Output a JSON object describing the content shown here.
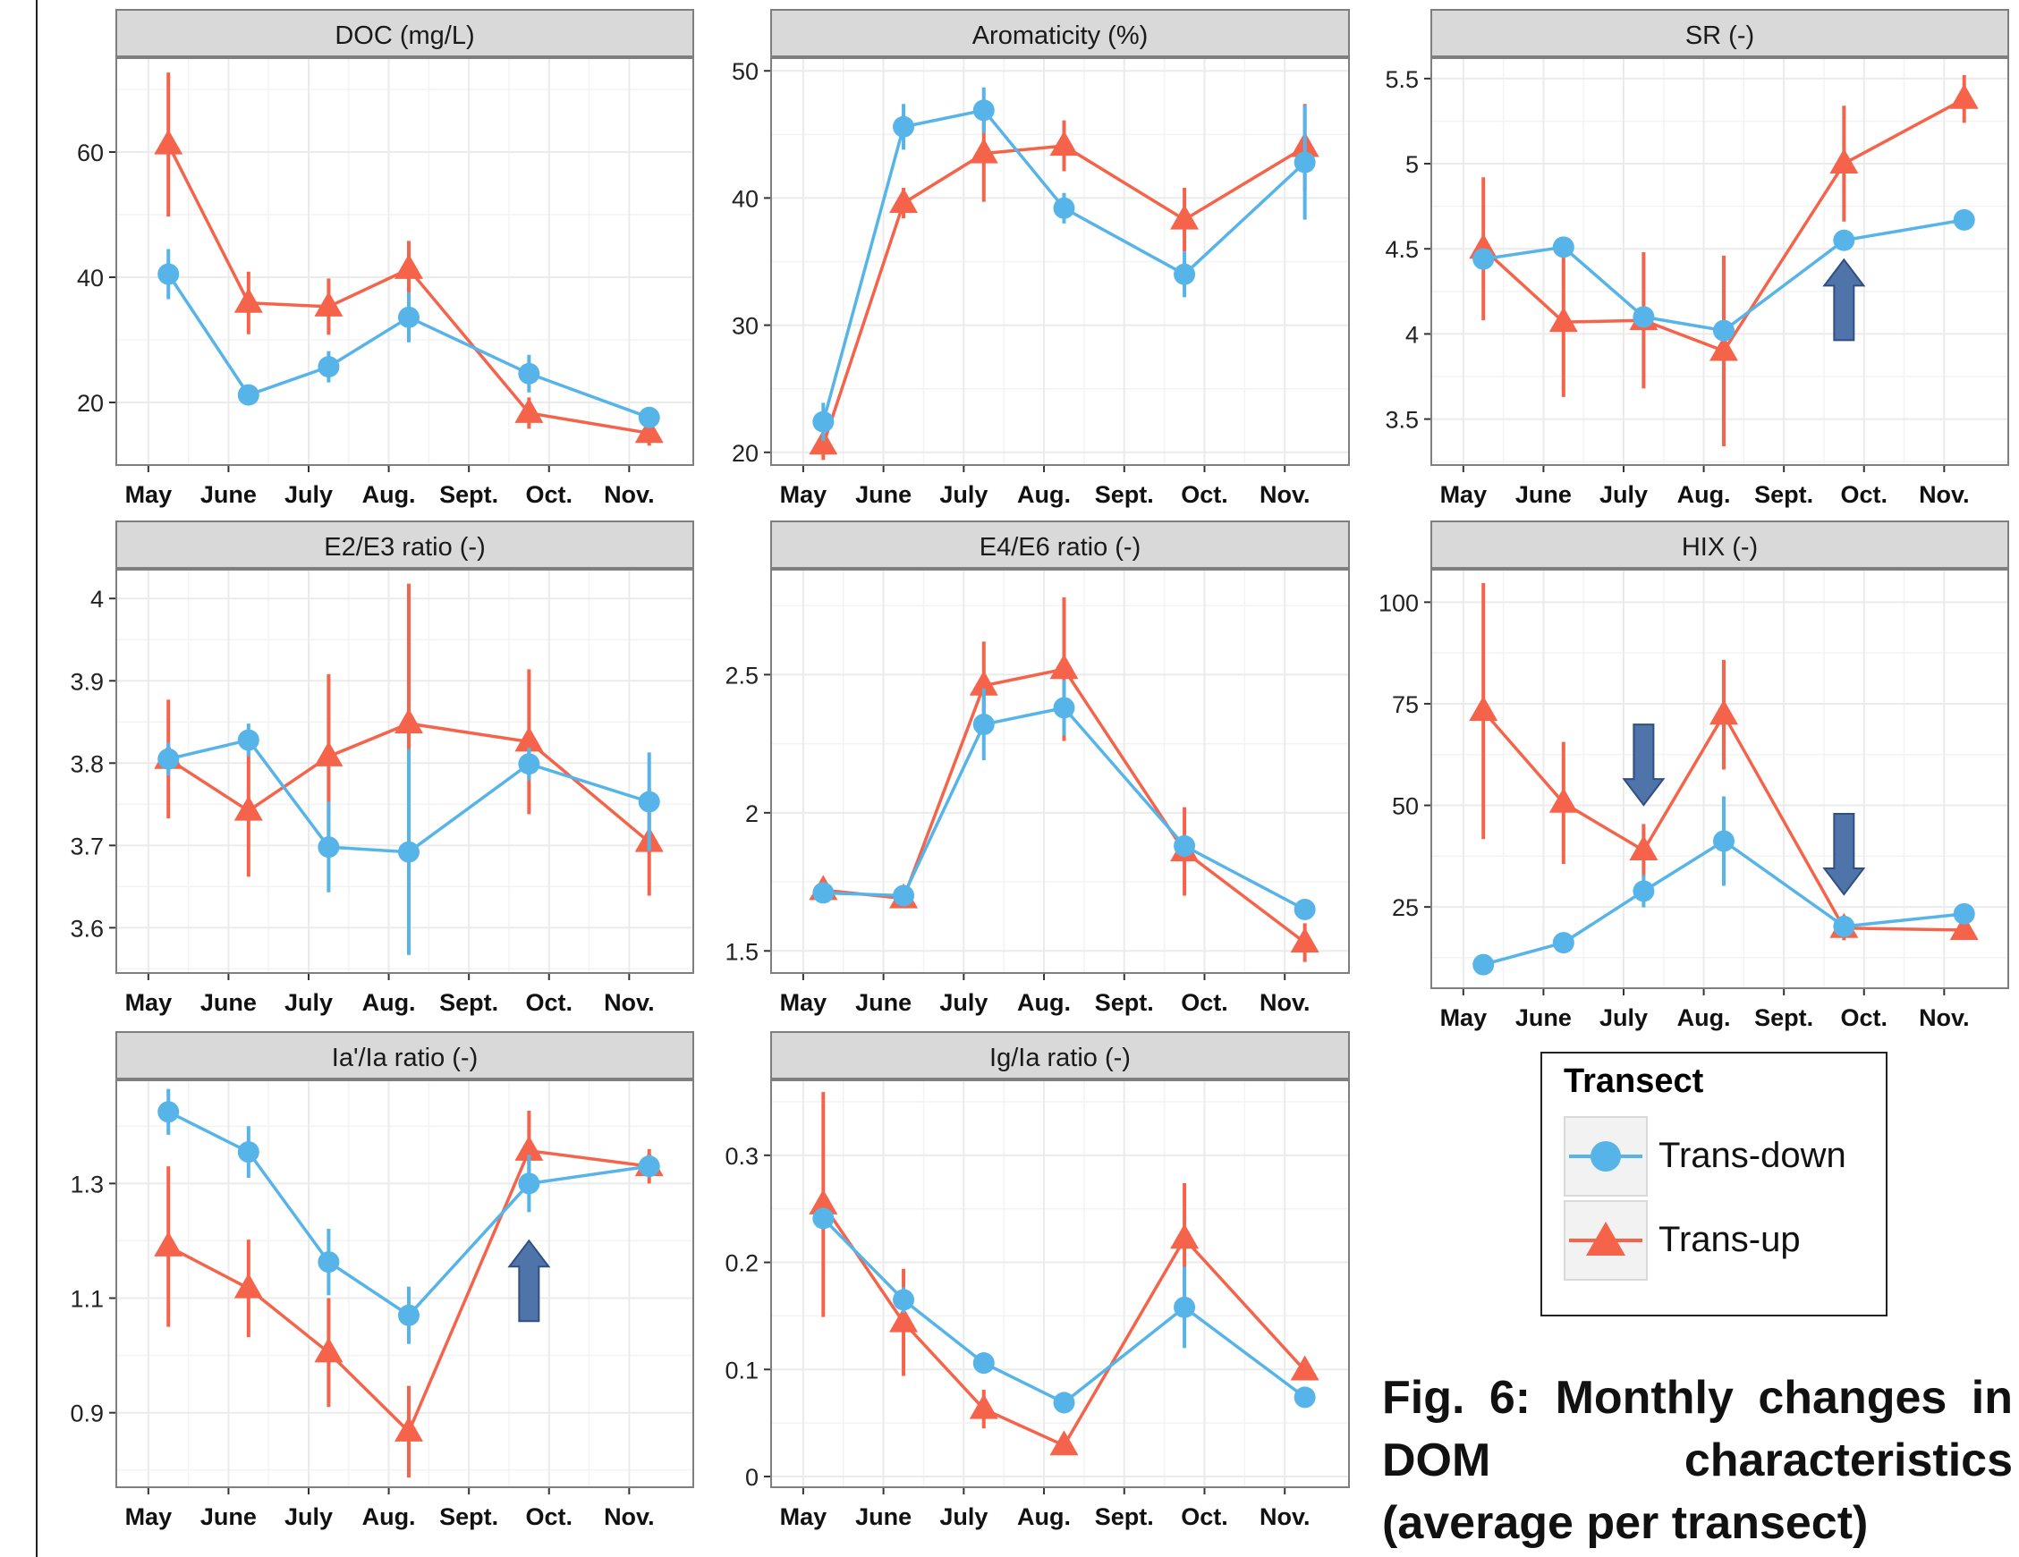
{
  "colors": {
    "trans_down": "#56b4e9",
    "trans_up": "#f5644a",
    "arrow": "#4f74aa",
    "strip": "#d9d9d9",
    "panel_bg": "#ffffff",
    "grid": "#ebebeb"
  },
  "legend": {
    "title": "Transect",
    "items": [
      "Trans-down",
      "Trans-up"
    ]
  },
  "caption": "Fig. 6: Monthly changes in DOM characteristics (average per transect)",
  "chart_data": [
    {
      "type": "line",
      "title": "DOC (mg/L)",
      "xticks": [
        "May",
        "June",
        "July",
        "Aug.",
        "Sept.",
        "Oct.",
        "Nov."
      ],
      "xlim": [
        0.6,
        7.8
      ],
      "ylim": [
        10,
        75
      ],
      "yticks": [
        20,
        40,
        60
      ],
      "series": [
        {
          "name": "Trans-down",
          "marker": "circle",
          "x": [
            1.25,
            2.25,
            3.25,
            4.25,
            5.75,
            7.25
          ],
          "y": [
            40.5,
            21.2,
            25.7,
            33.6,
            24.6,
            17.6
          ],
          "err": [
            4,
            1.5,
            2.5,
            4,
            3,
            1.5
          ]
        },
        {
          "name": "Trans-up",
          "marker": "triangle",
          "x": [
            1.25,
            2.25,
            3.25,
            4.25,
            5.75,
            7.25
          ],
          "y": [
            61.2,
            35.9,
            35.3,
            41.3,
            18.3,
            15.1
          ],
          "err": [
            11.5,
            5,
            4.5,
            4.5,
            2.5,
            2
          ]
        }
      ],
      "arrows": []
    },
    {
      "type": "line",
      "title": "Aromaticity (%)",
      "xticks": [
        "May",
        "June",
        "July",
        "Aug.",
        "Sept.",
        "Oct.",
        "Nov."
      ],
      "xlim": [
        0.6,
        7.8
      ],
      "ylim": [
        19,
        51
      ],
      "yticks": [
        20,
        30,
        40,
        50
      ],
      "series": [
        {
          "name": "Trans-down",
          "marker": "circle",
          "x": [
            1.25,
            2.25,
            3.25,
            4.25,
            5.75,
            7.25
          ],
          "y": [
            22.4,
            45.6,
            46.9,
            39.2,
            34.0,
            42.8
          ],
          "err": [
            1.5,
            1.8,
            1.8,
            1.2,
            1.8,
            4.5
          ]
        },
        {
          "name": "Trans-up",
          "marker": "triangle",
          "x": [
            1.25,
            2.25,
            3.25,
            4.25,
            5.75,
            7.25
          ],
          "y": [
            20.6,
            39.6,
            43.5,
            44.1,
            38.3,
            44.0
          ],
          "err": [
            1.2,
            1.2,
            3.8,
            2,
            2.5,
            3.4
          ]
        }
      ],
      "arrows": []
    },
    {
      "type": "line",
      "title": "SR (-)",
      "xticks": [
        "May",
        "June",
        "July",
        "Aug.",
        "Sept.",
        "Oct.",
        "Nov."
      ],
      "xlim": [
        0.6,
        7.8
      ],
      "ylim": [
        3.23,
        5.62
      ],
      "yticks": [
        3.5,
        4.0,
        4.5,
        5.0,
        5.5
      ],
      "series": [
        {
          "name": "Trans-down",
          "marker": "circle",
          "x": [
            1.25,
            2.25,
            3.25,
            4.25,
            5.75,
            7.25
          ],
          "y": [
            4.44,
            4.51,
            4.1,
            4.02,
            4.55,
            4.67
          ],
          "err": [
            0.05,
            0.04,
            0.05,
            0.05,
            0.05,
            0.03
          ]
        },
        {
          "name": "Trans-up",
          "marker": "triangle",
          "x": [
            1.25,
            2.25,
            3.25,
            4.25,
            5.75,
            7.25
          ],
          "y": [
            4.5,
            4.07,
            4.08,
            3.9,
            5.0,
            5.38
          ],
          "err": [
            0.42,
            0.44,
            0.4,
            0.56,
            0.34,
            0.14
          ]
        }
      ],
      "arrows": [
        {
          "x": 5.75,
          "y": 4.2,
          "direction": "up"
        }
      ]
    },
    {
      "type": "line",
      "title": "E2/E3 ratio (-)",
      "xticks": [
        "May",
        "June",
        "July",
        "Aug.",
        "Sept.",
        "Oct.",
        "Nov."
      ],
      "xlim": [
        0.6,
        7.8
      ],
      "ylim": [
        3.545,
        4.035
      ],
      "yticks": [
        3.6,
        3.7,
        3.8,
        3.9,
        4.0
      ],
      "series": [
        {
          "name": "Trans-down",
          "marker": "circle",
          "x": [
            1.25,
            2.25,
            3.25,
            4.25,
            5.75,
            7.25
          ],
          "y": [
            3.805,
            3.828,
            3.698,
            3.692,
            3.799,
            3.753
          ],
          "err": [
            0.02,
            0.02,
            0.055,
            0.125,
            0.02,
            0.06
          ]
        },
        {
          "name": "Trans-up",
          "marker": "triangle",
          "x": [
            1.25,
            2.25,
            3.25,
            4.25,
            5.75,
            7.25
          ],
          "y": [
            3.805,
            3.742,
            3.808,
            3.848,
            3.826,
            3.704
          ],
          "err": [
            0.072,
            0.08,
            0.1,
            0.17,
            0.088,
            0.065
          ]
        }
      ],
      "arrows": []
    },
    {
      "type": "line",
      "title": "E4/E6 ratio (-)",
      "xticks": [
        "May",
        "June",
        "July",
        "Aug.",
        "Sept.",
        "Oct.",
        "Nov."
      ],
      "xlim": [
        0.6,
        7.8
      ],
      "ylim": [
        1.42,
        2.88
      ],
      "yticks": [
        1.5,
        2.0,
        2.5
      ],
      "series": [
        {
          "name": "Trans-down",
          "marker": "circle",
          "x": [
            1.25,
            2.25,
            3.25,
            4.25,
            5.75,
            7.25
          ],
          "y": [
            1.71,
            1.7,
            2.32,
            2.38,
            1.88,
            1.65
          ],
          "err": [
            0.02,
            0.02,
            0.13,
            0.1,
            0.04,
            0.03
          ]
        },
        {
          "name": "Trans-up",
          "marker": "triangle",
          "x": [
            1.25,
            2.25,
            3.25,
            4.25,
            5.75,
            7.25
          ],
          "y": [
            1.72,
            1.69,
            2.46,
            2.52,
            1.86,
            1.53
          ],
          "err": [
            0.02,
            0.02,
            0.16,
            0.26,
            0.16,
            0.07
          ]
        }
      ],
      "arrows": []
    },
    {
      "type": "line",
      "title": "HIX (-)",
      "xticks": [
        "May",
        "June",
        "July",
        "Aug.",
        "Sept.",
        "Oct.",
        "Nov."
      ],
      "xlim": [
        0.6,
        7.8
      ],
      "ylim": [
        5,
        108
      ],
      "yticks": [
        25,
        50,
        75,
        100
      ],
      "series": [
        {
          "name": "Trans-down",
          "marker": "circle",
          "x": [
            1.25,
            2.25,
            3.25,
            4.25,
            5.75,
            7.25
          ],
          "y": [
            10.8,
            16.2,
            28.9,
            41.2,
            20.2,
            23.3
          ],
          "err": [
            1,
            1,
            4,
            11,
            1.5,
            1.5
          ]
        },
        {
          "name": "Trans-up",
          "marker": "triangle",
          "x": [
            1.25,
            2.25,
            3.25,
            4.25,
            5.75,
            7.25
          ],
          "y": [
            73.2,
            50.6,
            38.9,
            72.3,
            19.8,
            19.3
          ],
          "err": [
            31.5,
            15,
            6.5,
            13.5,
            3,
            1
          ]
        }
      ],
      "arrows": [
        {
          "x": 3.25,
          "y": 60,
          "direction": "down"
        },
        {
          "x": 5.75,
          "y": 38,
          "direction": "down"
        }
      ]
    },
    {
      "type": "line",
      "title": "Ia'/Ia ratio (-)",
      "xticks": [
        "May",
        "June",
        "July",
        "Aug.",
        "Sept.",
        "Oct.",
        "Nov."
      ],
      "xlim": [
        0.6,
        7.8
      ],
      "ylim": [
        0.77,
        1.48
      ],
      "yticks": [
        0.9,
        1.1,
        1.3
      ],
      "series": [
        {
          "name": "Trans-down",
          "marker": "circle",
          "x": [
            1.25,
            2.25,
            3.25,
            4.25,
            5.75,
            7.25
          ],
          "y": [
            1.425,
            1.355,
            1.163,
            1.07,
            1.3,
            1.33
          ],
          "err": [
            0.04,
            0.045,
            0.058,
            0.05,
            0.05,
            0.02
          ]
        },
        {
          "name": "Trans-up",
          "marker": "triangle",
          "x": [
            1.25,
            2.25,
            3.25,
            4.25,
            5.75,
            7.25
          ],
          "y": [
            1.19,
            1.117,
            1.005,
            0.867,
            1.357,
            1.33
          ],
          "err": [
            0.14,
            0.085,
            0.095,
            0.08,
            0.07,
            0.03
          ]
        }
      ],
      "arrows": [
        {
          "x": 5.75,
          "y": 1.13,
          "direction": "up"
        }
      ]
    },
    {
      "type": "line",
      "title": "Ig/Ia ratio (-)",
      "xticks": [
        "May",
        "June",
        "July",
        "Aug.",
        "Sept.",
        "Oct.",
        "Nov."
      ],
      "xlim": [
        0.6,
        7.8
      ],
      "ylim": [
        -0.01,
        0.37
      ],
      "yticks": [
        0.0,
        0.1,
        0.2,
        0.3
      ],
      "series": [
        {
          "name": "Trans-down",
          "marker": "circle",
          "x": [
            1.25,
            2.25,
            3.25,
            4.25,
            5.75,
            7.25
          ],
          "y": [
            0.241,
            0.165,
            0.106,
            0.069,
            0.158,
            0.074
          ],
          "err": [
            0.01,
            0.012,
            0.01,
            0.01,
            0.038,
            0.007
          ]
        },
        {
          "name": "Trans-up",
          "marker": "triangle",
          "x": [
            1.25,
            2.25,
            3.25,
            4.25,
            5.75,
            7.25
          ],
          "y": [
            0.254,
            0.144,
            0.063,
            0.029,
            0.222,
            0.099
          ],
          "err": [
            0.105,
            0.05,
            0.018,
            0.006,
            0.052,
            0.006
          ]
        }
      ],
      "arrows": []
    }
  ]
}
